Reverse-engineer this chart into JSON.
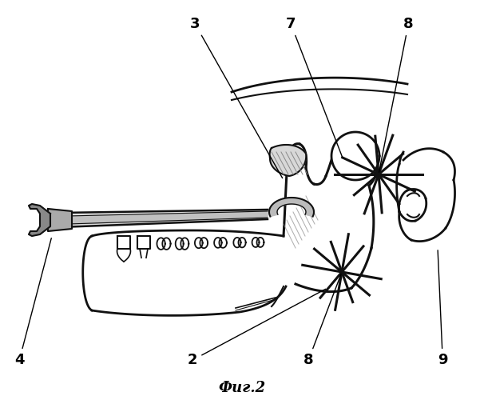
{
  "title": "Фиг.2",
  "background_color": "#ffffff",
  "line_color": "#111111",
  "label_fontsize": 13,
  "title_fontsize": 13,
  "figsize": [
    6.06,
    5.0
  ],
  "dpi": 100
}
